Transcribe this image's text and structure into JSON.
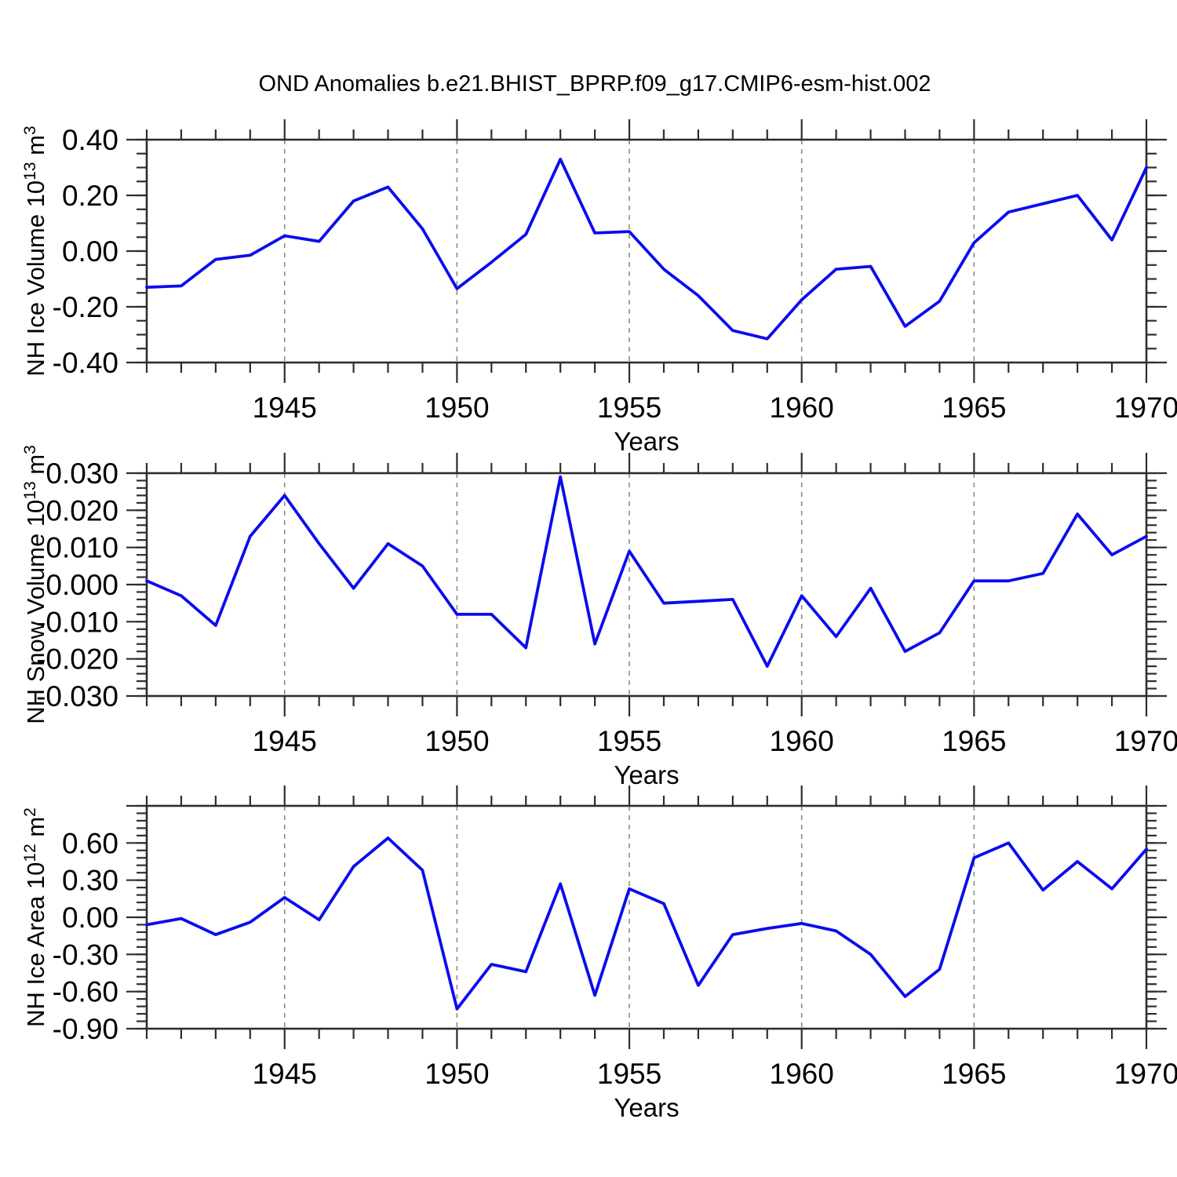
{
  "title": "OND Anomalies b.e21.BHIST_BPRP.f09_g17.CMIP6-esm-hist.002",
  "style": {
    "line_color": "#0b0bef",
    "axis_color": "#2e2e2e",
    "grid_color": "#8c8c8c",
    "text_color": "#000000",
    "background": "#ffffff"
  },
  "x_axis": {
    "label": "Years",
    "min_year": 1941,
    "max_year": 1970,
    "minor_step": 1,
    "major_step": 5,
    "tick_labels": [
      {
        "text": "1945",
        "value": 1945
      },
      {
        "text": "1950",
        "value": 1950
      },
      {
        "text": "1955",
        "value": 1955
      },
      {
        "text": "1960",
        "value": 1960
      },
      {
        "text": "1965",
        "value": 1965
      },
      {
        "text": "1970",
        "value": 1970
      }
    ],
    "gridline_years": [
      1945,
      1950,
      1955,
      1960,
      1965
    ]
  },
  "chart_data": [
    {
      "type": "line",
      "name": "nh-ice-volume",
      "ylabel": "NH Ice Volume 10^13 m^3",
      "ylabel_segments": [
        {
          "text": "NH Ice Volume 10",
          "sup": false
        },
        {
          "text": "13",
          "sup": true
        },
        {
          "text": " m",
          "sup": false
        },
        {
          "text": "3",
          "sup": true
        }
      ],
      "ylim": [
        -0.4,
        0.4
      ],
      "ytick_major": 0.2,
      "ytick_minor": 0.05,
      "ytick_labels": [
        {
          "text": "0.40",
          "value": 0.4
        },
        {
          "text": "0.20",
          "value": 0.2
        },
        {
          "text": "0.00",
          "value": 0.0
        },
        {
          "text": "-0.20",
          "value": -0.2
        },
        {
          "text": "-0.40",
          "value": -0.4
        }
      ],
      "x": [
        1941,
        1942,
        1943,
        1944,
        1945,
        1946,
        1947,
        1948,
        1949,
        1950,
        1951,
        1952,
        1953,
        1954,
        1955,
        1956,
        1957,
        1958,
        1959,
        1960,
        1961,
        1962,
        1963,
        1964,
        1965,
        1966,
        1967,
        1968,
        1969,
        1970
      ],
      "values": [
        -0.13,
        -0.125,
        -0.03,
        -0.015,
        0.055,
        0.035,
        0.18,
        0.23,
        0.08,
        -0.135,
        -0.04,
        0.06,
        0.33,
        0.065,
        0.07,
        -0.065,
        -0.16,
        -0.285,
        -0.315,
        -0.175,
        -0.065,
        -0.055,
        -0.27,
        -0.18,
        0.03,
        0.14,
        0.17,
        0.2,
        0.04,
        0.3
      ]
    },
    {
      "type": "line",
      "name": "nh-snow-volume",
      "ylabel": "NH Snow Volume 10^13 m^3",
      "ylabel_segments": [
        {
          "text": "NH Snow Volume 10",
          "sup": false
        },
        {
          "text": "13",
          "sup": true
        },
        {
          "text": " m",
          "sup": false
        },
        {
          "text": "3",
          "sup": true
        }
      ],
      "ylim": [
        -0.03,
        0.03
      ],
      "ytick_major": 0.01,
      "ytick_minor": 0.002,
      "ytick_labels": [
        {
          "text": "0.030",
          "value": 0.03
        },
        {
          "text": "0.020",
          "value": 0.02
        },
        {
          "text": "0.010",
          "value": 0.01
        },
        {
          "text": "0.000",
          "value": 0.0
        },
        {
          "text": "-0.010",
          "value": -0.01
        },
        {
          "text": "-0.020",
          "value": -0.02
        },
        {
          "text": "-0.030",
          "value": -0.03
        }
      ],
      "x": [
        1941,
        1942,
        1943,
        1944,
        1945,
        1946,
        1947,
        1948,
        1949,
        1950,
        1951,
        1952,
        1953,
        1954,
        1955,
        1956,
        1957,
        1958,
        1959,
        1960,
        1961,
        1962,
        1963,
        1964,
        1965,
        1966,
        1967,
        1968,
        1969,
        1970
      ],
      "values": [
        0.001,
        -0.003,
        -0.011,
        0.013,
        0.024,
        0.011,
        -0.001,
        0.011,
        0.005,
        -0.008,
        -0.008,
        -0.017,
        0.029,
        -0.016,
        0.009,
        -0.005,
        -0.0045,
        -0.004,
        -0.022,
        -0.003,
        -0.014,
        -0.001,
        -0.018,
        -0.013,
        0.001,
        0.001,
        0.003,
        0.019,
        0.008,
        0.013
      ]
    },
    {
      "type": "line",
      "name": "nh-ice-area",
      "ylabel": "NH Ice Area 10^12 m^2",
      "ylabel_segments": [
        {
          "text": "NH Ice Area 10",
          "sup": false
        },
        {
          "text": "12",
          "sup": true
        },
        {
          "text": " m",
          "sup": false
        },
        {
          "text": "2",
          "sup": true
        }
      ],
      "ylim": [
        -0.9,
        0.9
      ],
      "ytick_major": 0.3,
      "ytick_minor": 0.06,
      "ytick_labels": [
        {
          "text": "0.60",
          "value": 0.6
        },
        {
          "text": "0.30",
          "value": 0.3
        },
        {
          "text": "0.00",
          "value": 0.0
        },
        {
          "text": "-0.30",
          "value": -0.3
        },
        {
          "text": "-0.60",
          "value": -0.6
        },
        {
          "text": "-0.90",
          "value": -0.9
        }
      ],
      "x": [
        1941,
        1942,
        1943,
        1944,
        1945,
        1946,
        1947,
        1948,
        1949,
        1950,
        1951,
        1952,
        1953,
        1954,
        1955,
        1956,
        1957,
        1958,
        1959,
        1960,
        1961,
        1962,
        1963,
        1964,
        1965,
        1966,
        1967,
        1968,
        1969,
        1970
      ],
      "values": [
        -0.06,
        -0.01,
        -0.14,
        -0.04,
        0.16,
        -0.02,
        0.41,
        0.64,
        0.38,
        -0.74,
        -0.38,
        -0.44,
        0.27,
        -0.63,
        0.23,
        0.11,
        -0.55,
        -0.14,
        -0.09,
        -0.05,
        -0.11,
        -0.3,
        -0.64,
        -0.42,
        0.48,
        0.6,
        0.22,
        0.45,
        0.23,
        0.55
      ]
    }
  ]
}
